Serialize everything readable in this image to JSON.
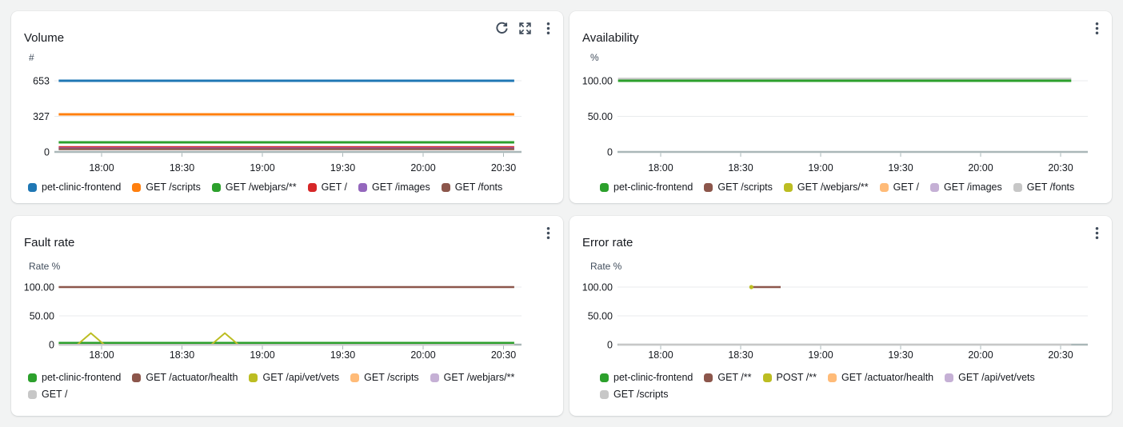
{
  "app": {
    "background_color": "#f2f3f3",
    "panel_background_color": "#ffffff",
    "header_icon_color": "#414d5c",
    "axis_color": "#aab7b8",
    "gridline_color": "#e9ebed",
    "tick_label_color": "#16191f"
  },
  "panels": [
    {
      "id": "volume",
      "title": "Volume",
      "unit_label": "#",
      "header_icons": [
        "refresh",
        "expand",
        "ellipsis"
      ],
      "y_tick_labels": [
        "653",
        "327",
        "0"
      ],
      "x_tick_labels": [
        "18:00",
        "18:30",
        "19:00",
        "19:30",
        "20:00",
        "20:30"
      ],
      "legend_rows": [
        [
          "pet-clinic-frontend",
          "GET /scripts",
          "GET /webjars/**",
          "GET /",
          "GET /images",
          "GET /fonts"
        ]
      ]
    },
    {
      "id": "availability",
      "title": "Availability",
      "unit_label": "%",
      "header_icons": [
        "ellipsis"
      ],
      "y_tick_labels": [
        "100.00",
        "50.00",
        "0"
      ],
      "x_tick_labels": [
        "18:00",
        "18:30",
        "19:00",
        "19:30",
        "20:00",
        "20:30"
      ],
      "legend_rows": [
        [
          "pet-clinic-frontend",
          "GET /scripts",
          "GET /webjars/**",
          "GET /",
          "GET /images",
          "GET /fonts"
        ]
      ]
    },
    {
      "id": "fault",
      "title": "Fault rate",
      "unit_label": "Rate %",
      "header_icons": [
        "ellipsis"
      ],
      "y_tick_labels": [
        "100.00",
        "50.00",
        "0"
      ],
      "x_tick_labels": [
        "18:00",
        "18:30",
        "19:00",
        "19:30",
        "20:00",
        "20:30"
      ],
      "legend_rows": [
        [
          "pet-clinic-frontend",
          "GET /actuator/health",
          "GET /api/vet/vets",
          "GET /scripts",
          "GET /webjars/**"
        ],
        [
          "GET /"
        ]
      ]
    },
    {
      "id": "error",
      "title": "Error rate",
      "unit_label": "Rate %",
      "header_icons": [
        "ellipsis"
      ],
      "y_tick_labels": [
        "100.00",
        "50.00",
        "0"
      ],
      "x_tick_labels": [
        "18:00",
        "18:30",
        "19:00",
        "19:30",
        "20:00",
        "20:30"
      ],
      "legend_rows": [
        [
          "pet-clinic-frontend",
          "GET /**",
          "POST /**",
          "GET /actuator/health",
          "GET /api/vet/vets"
        ],
        [
          "GET /scripts"
        ]
      ]
    }
  ],
  "chart_data": [
    {
      "id": "volume",
      "type": "line",
      "title": "Volume",
      "xlabel": "",
      "ylabel": "#",
      "x_type": "time",
      "x_ticks": [
        "18:00",
        "18:30",
        "19:00",
        "19:30",
        "20:00",
        "20:30"
      ],
      "time_range": [
        "17:44",
        "20:34"
      ],
      "y_ticks": [
        653,
        327,
        0
      ],
      "ylim": [
        0,
        653
      ],
      "grid": true,
      "legend_position": "bottom",
      "series": [
        {
          "name": "pet-clinic-frontend",
          "color": "#1f77b4",
          "type": "constant",
          "value": 653,
          "visible": true
        },
        {
          "name": "GET /scripts",
          "color": "#ff7f0e",
          "type": "constant",
          "value": 345,
          "visible": true
        },
        {
          "name": "GET /webjars/**",
          "color": "#2ca02c",
          "type": "constant",
          "value": 88,
          "visible": true
        },
        {
          "name": "GET /",
          "color": "#d62728",
          "type": "constant",
          "value": 44,
          "visible": true
        },
        {
          "name": "GET /images",
          "color": "#9467bd",
          "type": "constant",
          "value": 33,
          "visible": true
        },
        {
          "name": "GET /fonts",
          "color": "#8c564b",
          "type": "constant",
          "value": 26,
          "visible": true
        }
      ]
    },
    {
      "id": "availability",
      "type": "line",
      "title": "Availability",
      "xlabel": "",
      "ylabel": "%",
      "x_type": "time",
      "x_ticks": [
        "18:00",
        "18:30",
        "19:00",
        "19:30",
        "20:00",
        "20:30"
      ],
      "time_range": [
        "17:44",
        "20:34"
      ],
      "y_ticks": [
        100,
        50,
        0
      ],
      "ylim": [
        0,
        100
      ],
      "grid": true,
      "legend_position": "bottom",
      "series": [
        {
          "name": "pet-clinic-frontend",
          "color": "#2ca02c",
          "type": "constant",
          "value": 100,
          "visible": true
        },
        {
          "name": "GET /scripts",
          "color": "#8c564b",
          "type": "constant",
          "value": 100,
          "visible": false
        },
        {
          "name": "GET /webjars/**",
          "color": "#bcbd22",
          "type": "constant",
          "value": 100,
          "visible": false
        },
        {
          "name": "GET /",
          "color": "#ffbb78",
          "type": "constant",
          "value": 100,
          "visible": false
        },
        {
          "name": "GET /images",
          "color": "#c5b0d5",
          "type": "constant",
          "value": 100,
          "visible": false
        },
        {
          "name": "GET /fonts",
          "color": "#c7c7c7",
          "type": "constant",
          "value": 100,
          "visible": true
        }
      ]
    },
    {
      "id": "fault",
      "type": "line",
      "title": "Fault rate",
      "xlabel": "",
      "ylabel": "Rate %",
      "x_type": "time",
      "x_ticks": [
        "18:00",
        "18:30",
        "19:00",
        "19:30",
        "20:00",
        "20:30"
      ],
      "time_range": [
        "17:44",
        "20:34"
      ],
      "y_ticks": [
        100,
        50,
        0
      ],
      "ylim": [
        0,
        100
      ],
      "grid": true,
      "legend_position": "bottom",
      "series": [
        {
          "name": "pet-clinic-frontend",
          "color": "#2ca02c",
          "type": "constant",
          "value": 3,
          "visible": true
        },
        {
          "name": "GET /actuator/health",
          "color": "#8c564b",
          "type": "constant",
          "value": 100,
          "visible": true
        },
        {
          "name": "GET /api/vet/vets",
          "color": "#bcbd22",
          "type": "points",
          "visible": true,
          "points": [
            [
              "17:44",
              0
            ],
            [
              "17:51",
              0
            ],
            [
              "17:56",
              20
            ],
            [
              "18:01",
              0
            ],
            [
              "18:41",
              0
            ],
            [
              "18:46",
              20
            ],
            [
              "18:51",
              0
            ],
            [
              "20:34",
              0
            ]
          ]
        },
        {
          "name": "GET /scripts",
          "color": "#ffbb78",
          "type": "constant",
          "value": 0,
          "visible": false
        },
        {
          "name": "GET /webjars/**",
          "color": "#c5b0d5",
          "type": "constant",
          "value": 0,
          "visible": false
        },
        {
          "name": "GET /",
          "color": "#c7c7c7",
          "type": "constant",
          "value": 0,
          "visible": true
        }
      ]
    },
    {
      "id": "error",
      "type": "line",
      "title": "Error rate",
      "xlabel": "",
      "ylabel": "Rate %",
      "x_type": "time",
      "x_ticks": [
        "18:00",
        "18:30",
        "19:00",
        "19:30",
        "20:00",
        "20:30"
      ],
      "time_range": [
        "17:44",
        "20:34"
      ],
      "y_ticks": [
        100,
        50,
        0
      ],
      "ylim": [
        0,
        100
      ],
      "grid": true,
      "legend_position": "bottom",
      "series": [
        {
          "name": "pet-clinic-frontend",
          "color": "#2ca02c",
          "type": "constant",
          "value": 0,
          "visible": false
        },
        {
          "name": "GET /**",
          "color": "#8c564b",
          "type": "points",
          "visible": true,
          "points": [
            [
              "18:34",
              100
            ],
            [
              "18:45",
              100
            ]
          ]
        },
        {
          "name": "POST /**",
          "color": "#bcbd22",
          "type": "dot",
          "point": [
            "18:34",
            100
          ],
          "visible": true
        },
        {
          "name": "GET /actuator/health",
          "color": "#ffbb78",
          "type": "constant",
          "value": 0,
          "visible": false
        },
        {
          "name": "GET /api/vet/vets",
          "color": "#c5b0d5",
          "type": "constant",
          "value": 0,
          "visible": false
        },
        {
          "name": "GET /scripts",
          "color": "#c7c7c7",
          "type": "constant",
          "value": 0,
          "visible": true
        }
      ]
    }
  ]
}
